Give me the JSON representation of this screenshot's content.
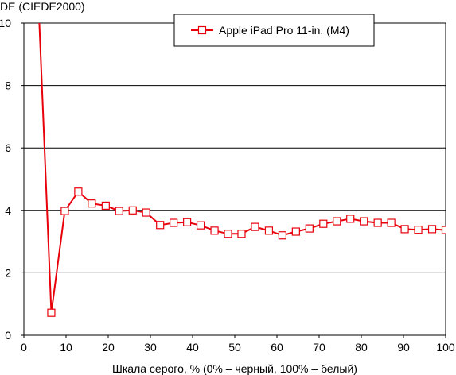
{
  "chart_data": {
    "type": "line",
    "title": "",
    "ylabel": "DE (CIEDE2000)",
    "xlabel": "Шкала серого, % (0% – черный, 100% – белый)",
    "xlim": [
      0,
      100
    ],
    "ylim": [
      0,
      10
    ],
    "x_ticks": [
      "0",
      "10",
      "20",
      "30",
      "40",
      "50",
      "60",
      "70",
      "80",
      "90",
      "100"
    ],
    "y_ticks": [
      "0",
      "2",
      "4",
      "6",
      "8",
      "10"
    ],
    "grid": "horizontal",
    "legend_position": "top-right",
    "series": [
      {
        "name": "Apple iPad Pro 11-in. (M4)",
        "color": "#e8000b",
        "marker": "open-square",
        "x": [
          3.2,
          6.5,
          9.7,
          12.9,
          16.1,
          19.4,
          22.6,
          25.8,
          29.0,
          32.3,
          35.5,
          38.7,
          41.9,
          45.2,
          48.4,
          51.6,
          54.8,
          58.1,
          61.3,
          64.5,
          67.7,
          71.0,
          74.2,
          77.4,
          80.6,
          83.9,
          87.1,
          90.3,
          93.5,
          96.8,
          100.0
        ],
        "y": [
          null,
          0.72,
          3.98,
          4.6,
          4.22,
          4.15,
          3.98,
          4.0,
          3.93,
          3.53,
          3.6,
          3.62,
          3.52,
          3.35,
          3.25,
          3.25,
          3.47,
          3.35,
          3.2,
          3.32,
          3.42,
          3.57,
          3.65,
          3.73,
          3.65,
          3.6,
          3.6,
          3.4,
          3.38,
          3.4,
          3.37
        ]
      }
    ]
  }
}
